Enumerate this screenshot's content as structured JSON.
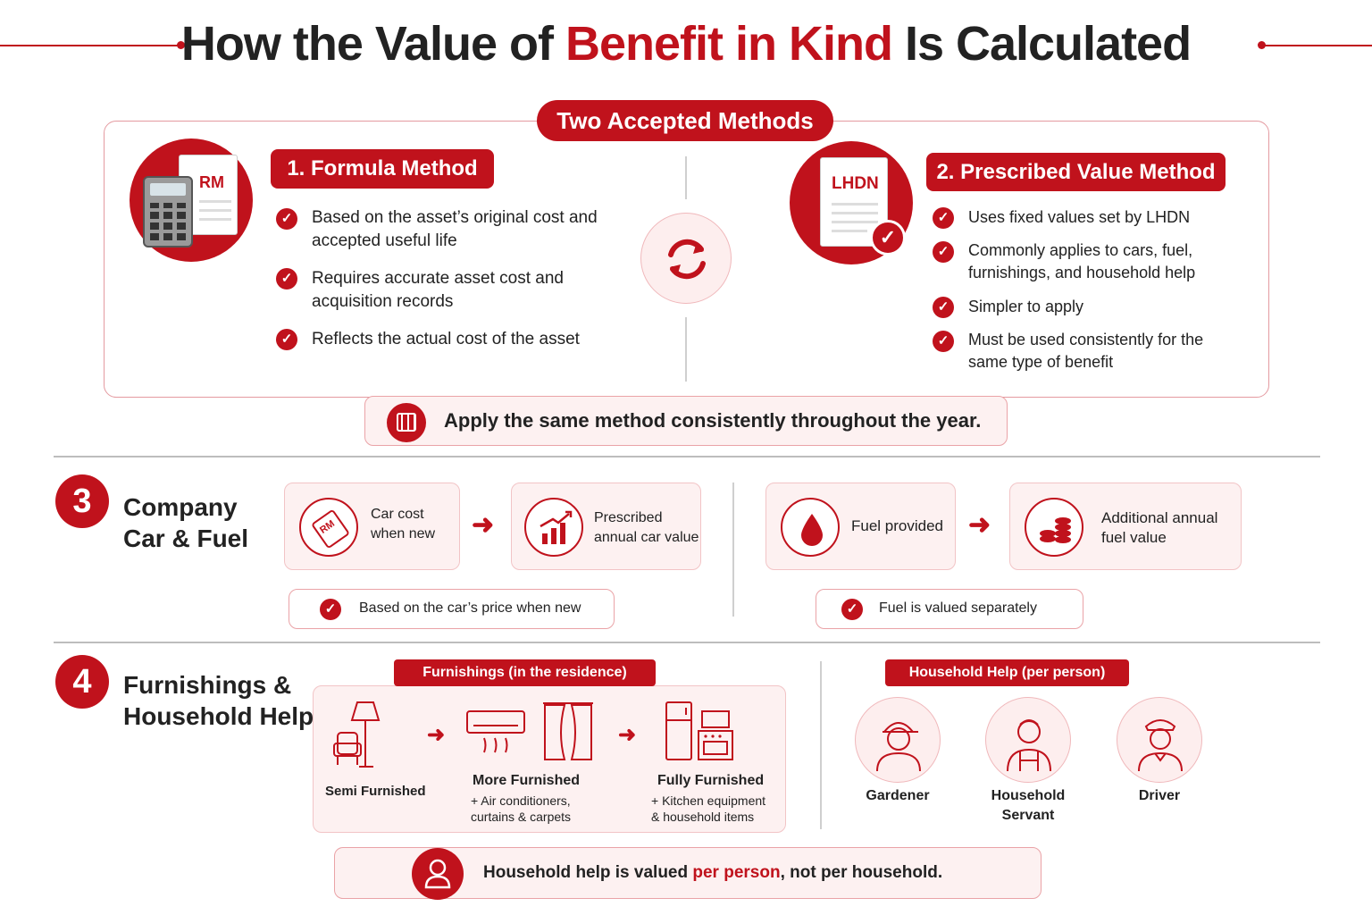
{
  "title": {
    "part1": "How the Value of ",
    "highlight": "Benefit in Kind",
    "part2": " Is Calculated"
  },
  "methods": {
    "header": "Two Accepted Methods",
    "formula": {
      "title": "1. Formula Method",
      "icon_label": "RM",
      "bullets": [
        "Based on the asset’s original cost and accepted useful life",
        "Requires accurate asset cost and acquisition records",
        "Reflects the actual cost of the asset"
      ]
    },
    "prescribed": {
      "title": "2. Prescribed Value Method",
      "icon_label": "LHDN",
      "bullets": [
        "Uses fixed values set by LHDN",
        "Commonly applies to cars, fuel, furnishings, and household help",
        "Simpler to apply",
        "Must be used consistently for the same type of benefit"
      ]
    },
    "note": "Apply the same method consistently throughout the year."
  },
  "car": {
    "number": "3",
    "title_line1": "Company",
    "title_line2": "Car & Fuel",
    "tag_text": "RM",
    "car_cost": "Car cost when new",
    "prescribed_value": "Prescribed annual car value",
    "car_note": "Based on the car’s price when new",
    "fuel_provided": "Fuel provided",
    "fuel_value": "Additional annual fuel value",
    "fuel_note": "Fuel is valued separately"
  },
  "furnishings": {
    "number": "4",
    "title_line1": "Furnishings &",
    "title_line2": "Household Help",
    "furn_header": "Furnishings (in the residence)",
    "semi": "Semi Furnished",
    "more": "More Furnished",
    "more_sub1": "+ Air conditioners,",
    "more_sub2": "curtains & carpets",
    "fully": "Fully Furnished",
    "fully_sub1": "+ Kitchen equipment",
    "fully_sub2": "& household items",
    "help_header": "Household Help (per person)",
    "helpers": [
      {
        "label1": "Gardener",
        "label2": ""
      },
      {
        "label1": "Household",
        "label2": "Servant"
      },
      {
        "label1": "Driver",
        "label2": ""
      }
    ],
    "note_part1": "Household help is valued ",
    "note_highlight": "per person",
    "note_part2": ", not per household."
  },
  "colors": {
    "accent": "#c0121c",
    "pink_bg": "#fdf1f1",
    "border": "#e49aa0"
  }
}
